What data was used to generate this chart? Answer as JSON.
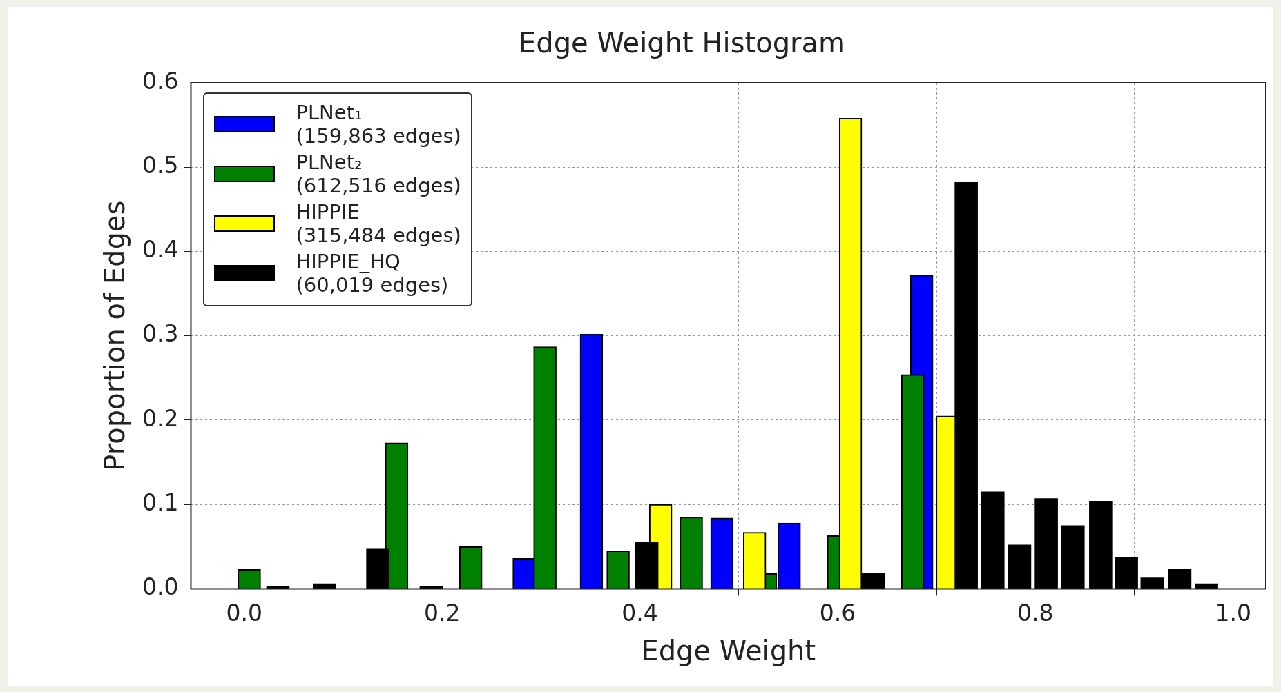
{
  "chart_data": {
    "type": "bar",
    "title": "Edge Weight Histogram",
    "xlabel": "Edge Weight",
    "ylabel": "Proportion of Edges",
    "xlim": [
      -0.054,
      1.033
    ],
    "ylim": [
      0,
      0.6
    ],
    "xticks": [
      {
        "value": 0,
        "label": "0.0"
      },
      {
        "value": 0.2,
        "label": "0.2"
      },
      {
        "value": 0.4,
        "label": "0.4"
      },
      {
        "value": 0.6,
        "label": "0.6"
      },
      {
        "value": 0.8,
        "label": "0.8"
      },
      {
        "value": 1,
        "label": "1.0"
      }
    ],
    "yticks": [
      {
        "value": 0,
        "label": "0.0"
      },
      {
        "value": 0.1,
        "label": "0.1"
      },
      {
        "value": 0.2,
        "label": "0.2"
      },
      {
        "value": 0.3,
        "label": "0.3"
      },
      {
        "value": 0.4,
        "label": "0.4"
      },
      {
        "value": 0.5,
        "label": "0.5"
      },
      {
        "value": 0.6,
        "label": "0.6"
      }
    ],
    "grid": true,
    "legend": "top left",
    "series": [
      {
        "name": "PLNet₁\n(159,863 edges)",
        "color": "#0000ff",
        "x": [
          0.283,
          0.351,
          0.483,
          0.551,
          0.685
        ],
        "values": [
          0.036,
          0.302,
          0.084,
          0.078,
          0.372
        ]
      },
      {
        "name": "PLNet₂\n(612,516 edges)",
        "color": "#008000",
        "x": [
          0.005,
          0.154,
          0.229,
          0.304,
          0.378,
          0.452,
          0.527,
          0.601,
          0.676
        ],
        "values": [
          0.023,
          0.173,
          0.05,
          0.287,
          0.045,
          0.085,
          0.018,
          0.063,
          0.254
        ]
      },
      {
        "name": "HIPPIE\n(315,484 edges)",
        "color": "#ffff00",
        "x": [
          0.421,
          0.516,
          0.613,
          0.711
        ],
        "values": [
          0.1,
          0.067,
          0.558,
          0.205
        ]
      },
      {
        "name": "HIPPIE_HQ\n(60,019 edges)",
        "color": "#000000",
        "x": [
          0.034,
          0.081,
          0.135,
          0.189,
          0.407,
          0.636,
          0.73,
          0.757,
          0.784,
          0.811,
          0.838,
          0.866,
          0.892,
          0.918,
          0.946,
          0.973
        ],
        "values": [
          0.003,
          0.006,
          0.047,
          0.003,
          0.055,
          0.018,
          0.482,
          0.115,
          0.052,
          0.107,
          0.075,
          0.104,
          0.037,
          0.013,
          0.023,
          0.006
        ]
      }
    ]
  }
}
